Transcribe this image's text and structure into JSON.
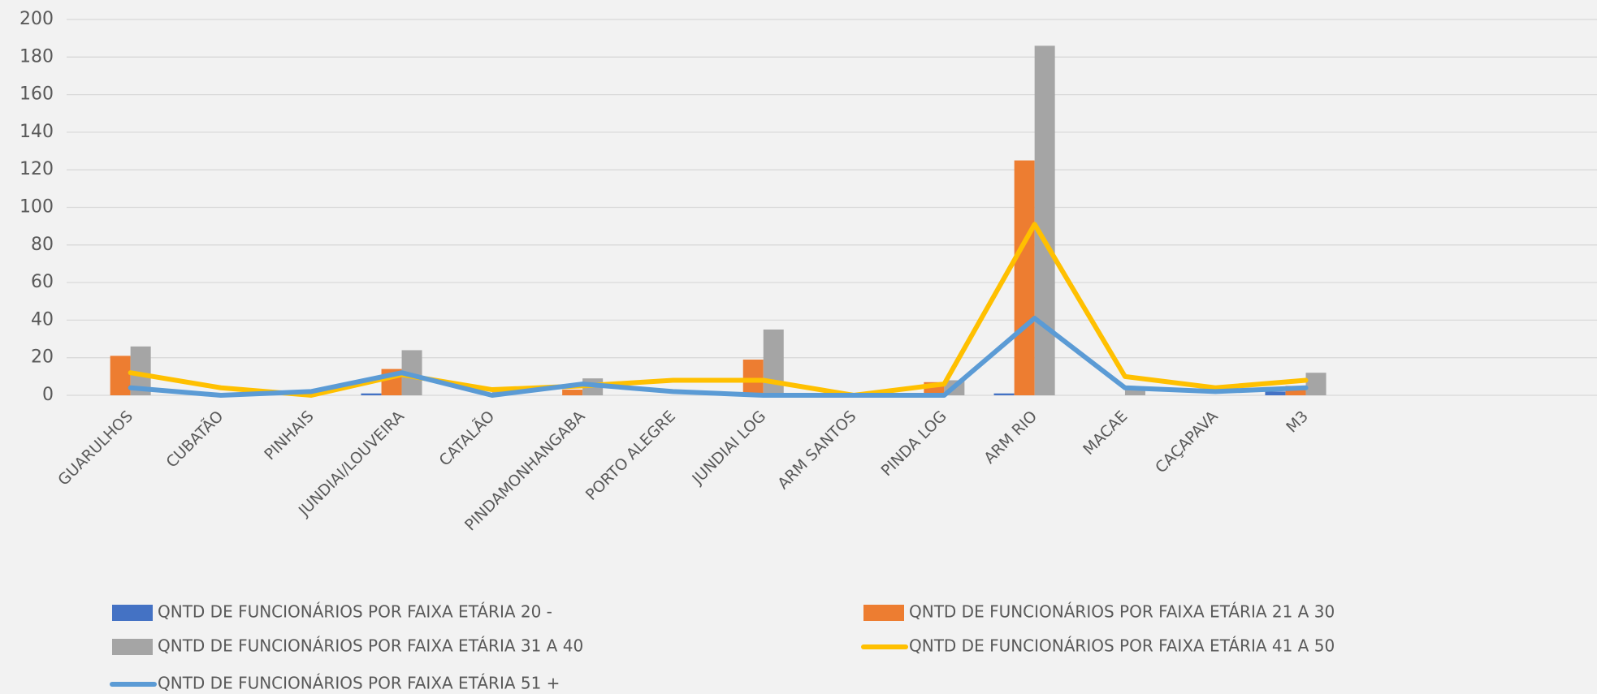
{
  "chart_data": {
    "type": "bar",
    "categories": [
      "GUARULHOS",
      "CUBATÃO",
      "PINHAIS",
      "JUNDIAI/LOUVEIRA",
      "CATALÃO",
      "PINDAMONHANGABA",
      "PORTO ALEGRE",
      "JUNDIAI LOG",
      "ARM SANTOS",
      "PINDA LOG",
      "ARM RIO",
      "MACAE",
      "CAÇAPAVA",
      "M3"
    ],
    "series": [
      {
        "name": "QNTD DE FUNCIONÁRIOS POR FAIXA ETÁRIA 20 -",
        "type": "bar",
        "color": "#4472c4",
        "values": [
          0,
          0,
          0,
          1,
          0,
          0,
          0,
          0,
          0,
          0,
          1,
          0,
          0,
          2
        ]
      },
      {
        "name": "QNTD DE FUNCIONÁRIOS POR FAIXA ETÁRIA 21 A 30",
        "type": "bar",
        "color": "#ed7d31",
        "values": [
          21,
          0,
          0,
          14,
          0,
          3,
          0,
          19,
          0,
          7,
          125,
          0,
          0,
          5
        ]
      },
      {
        "name": "QNTD DE FUNCIONÁRIOS POR FAIXA ETÁRIA 31 A 40",
        "type": "bar",
        "color": "#a5a5a5",
        "values": [
          26,
          0,
          0,
          24,
          3,
          9,
          0,
          35,
          0,
          8,
          186,
          3,
          0,
          12
        ]
      },
      {
        "name": "QNTD DE FUNCIONÁRIOS POR FAIXA ETÁRIA 41 A 50",
        "type": "line",
        "color": "#ffc000",
        "values": [
          12,
          4,
          0,
          11,
          3,
          5,
          8,
          8,
          0,
          6,
          91,
          10,
          4,
          8
        ]
      },
      {
        "name": "QNTD DE FUNCIONÁRIOS POR FAIXA ETÁRIA 51 +",
        "type": "line",
        "color": "#5b9bd5",
        "values": [
          4,
          0,
          2,
          12,
          0,
          6,
          2,
          0,
          0,
          0,
          41,
          4,
          2,
          4
        ]
      }
    ],
    "ylim": [
      0,
      200
    ],
    "yticks": [
      0,
      20,
      40,
      60,
      80,
      100,
      120,
      140,
      160,
      180,
      200
    ],
    "grid": true
  }
}
